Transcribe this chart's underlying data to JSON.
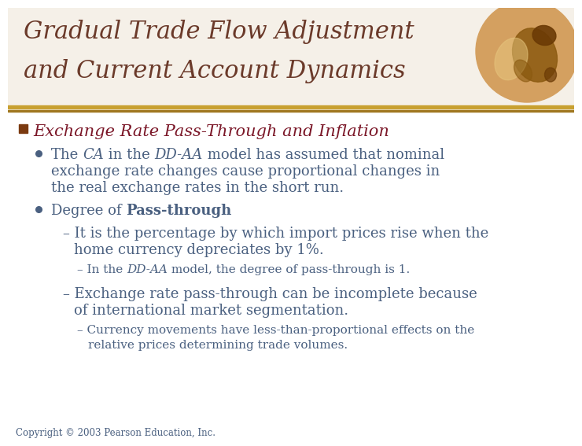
{
  "title_line1": "Gradual Trade Flow Adjustment",
  "title_line2": "and Current Account Dynamics",
  "title_color": "#6B3A2A",
  "title_fontsize": 22,
  "divider_color": "#C8A030",
  "section_header": "Exchange Rate Pass-Through and Inflation",
  "section_header_color": "#7B1728",
  "section_header_fontsize": 15,
  "section_square_color": "#7B3A10",
  "bullet_color": "#4A6080",
  "body_color": "#4A6080",
  "body_fs": 13,
  "sub_fs": 13,
  "small_fs": 11,
  "copyright": "Copyright © 2003 Pearson Education, Inc.",
  "bg_color": "#FFFFFF",
  "globe_base": "#D4A060",
  "globe_dark1": "#8B5A10",
  "globe_dark2": "#6B3A05"
}
